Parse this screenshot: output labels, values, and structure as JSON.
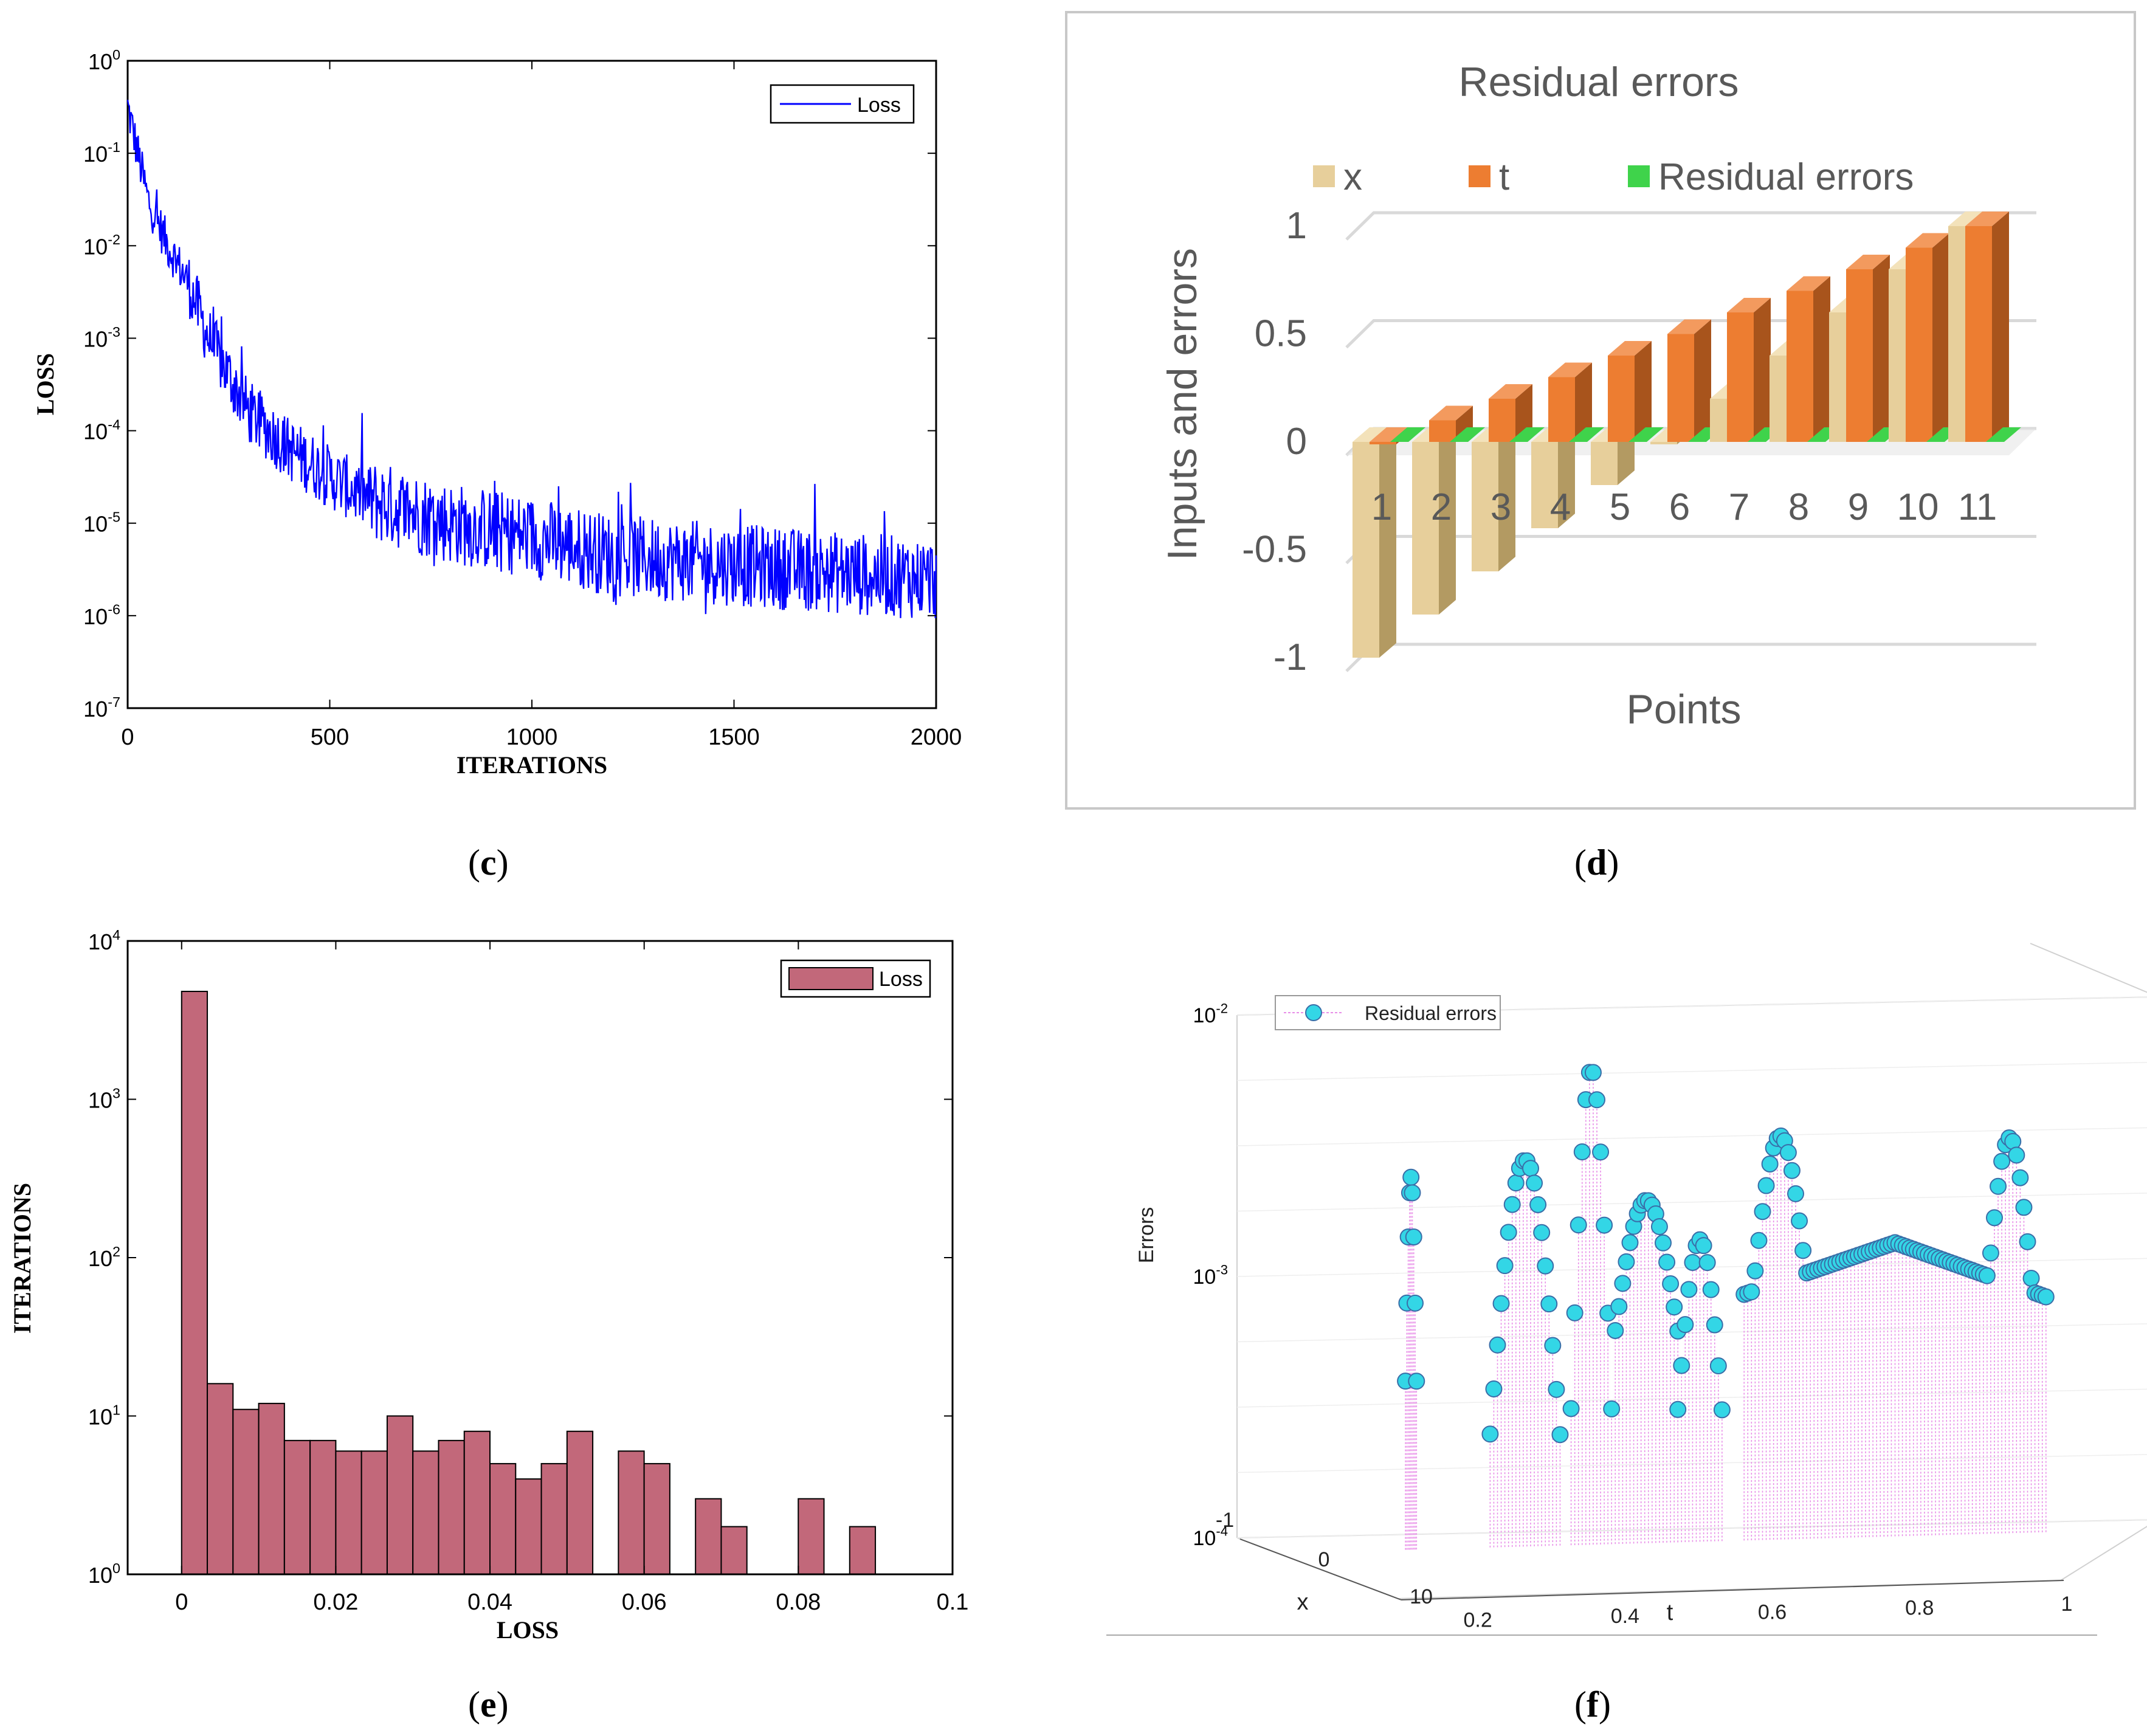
{
  "panels": {
    "c": "c",
    "d": "d",
    "e": "e",
    "f": "f"
  },
  "chart_data": [
    {
      "id": "c",
      "type": "line",
      "title": "",
      "xlabel": "ITERATIONS",
      "ylabel": "LOSS",
      "xlim": [
        0,
        2000
      ],
      "ylim_log10": [
        -7,
        0
      ],
      "xticks": [
        "0",
        "500",
        "1000",
        "1500",
        "2000"
      ],
      "yticks": [
        {
          "base": "10",
          "exp": "0"
        },
        {
          "base": "10",
          "exp": "-1"
        },
        {
          "base": "10",
          "exp": "-2"
        },
        {
          "base": "10",
          "exp": "-3"
        },
        {
          "base": "10",
          "exp": "-4"
        },
        {
          "base": "10",
          "exp": "-5"
        },
        {
          "base": "10",
          "exp": "-6"
        },
        {
          "base": "10",
          "exp": "-7"
        }
      ],
      "legend": [
        "Loss"
      ],
      "legend_position": "top-right",
      "series_color": "#0000ff",
      "trend": {
        "x": [
          0,
          50,
          100,
          150,
          200,
          300,
          400,
          500,
          600,
          800,
          1000,
          1200,
          1500,
          1800,
          2000
        ],
        "log10_y": [
          -0.5,
          -1.5,
          -2.0,
          -2.4,
          -3.0,
          -3.8,
          -4.2,
          -4.5,
          -4.75,
          -5.0,
          -5.15,
          -5.35,
          -5.45,
          -5.55,
          -5.6
        ]
      }
    },
    {
      "id": "d",
      "type": "bar",
      "title": "Residual errors",
      "xlabel": "Points",
      "ylabel": "Inputs and errors",
      "ylim": [
        -1,
        1
      ],
      "yticks": [
        "1",
        "0.5",
        "0",
        "-0.5",
        "-1"
      ],
      "categories": [
        "1",
        "2",
        "3",
        "4",
        "5",
        "6",
        "7",
        "8",
        "9",
        "10",
        "11"
      ],
      "series": [
        {
          "name": "x",
          "color": "#e7cf9b",
          "values": [
            -1,
            -0.8,
            -0.6,
            -0.4,
            -0.2,
            0,
            0.2,
            0.4,
            0.6,
            0.8,
            1
          ]
        },
        {
          "name": "t",
          "color": "#ed7d31",
          "values": [
            0,
            0.1,
            0.2,
            0.3,
            0.4,
            0.5,
            0.6,
            0.7,
            0.8,
            0.9,
            1
          ]
        },
        {
          "name": "Residual errors",
          "color": "#3fd34b",
          "values": [
            0,
            0,
            0,
            0,
            0,
            0,
            0,
            0,
            0,
            0,
            0
          ]
        }
      ],
      "legend_position": "top"
    },
    {
      "id": "e",
      "type": "bar",
      "title": "",
      "xlabel": "LOSS",
      "ylabel": "ITERATIONS",
      "xlim": [
        -0.007,
        0.1
      ],
      "ylim_log10": [
        0,
        4
      ],
      "xticks": [
        "0",
        "0.02",
        "0.04",
        "0.06",
        "0.08",
        "0.1"
      ],
      "yticks": [
        {
          "base": "10",
          "exp": "4"
        },
        {
          "base": "10",
          "exp": "3"
        },
        {
          "base": "10",
          "exp": "2"
        },
        {
          "base": "10",
          "exp": "1"
        },
        {
          "base": "10",
          "exp": "0"
        }
      ],
      "legend": [
        "Loss"
      ],
      "legend_position": "top-right",
      "bar_color": "#c2687a",
      "bin_width": 0.003333,
      "bin_start": 0,
      "counts": [
        4800,
        16,
        11,
        12,
        7,
        7,
        6,
        6,
        10,
        6,
        7,
        8,
        5,
        4,
        5,
        8,
        1,
        6,
        5,
        1,
        3,
        2,
        1,
        1,
        3,
        1,
        2
      ]
    },
    {
      "id": "f",
      "type": "scatter",
      "title": "",
      "xlabel": "t",
      "ylabel": "Errors",
      "depth_label": "x",
      "zlim_log10": [
        -4,
        -2
      ],
      "zticks": [
        {
          "base": "10",
          "exp": "-2"
        },
        {
          "base": "10",
          "exp": "-3"
        },
        {
          "base": "10",
          "exp": "-4"
        }
      ],
      "tticks": [
        "0.2",
        "0.4",
        "0.6",
        "0.8",
        "1"
      ],
      "xticks": [
        "-1",
        "0",
        "10"
      ],
      "legend": [
        "Residual errors"
      ],
      "legend_position": "top-left",
      "marker_color": "#33d6e6",
      "stem_color": "#e88ee8"
    }
  ]
}
